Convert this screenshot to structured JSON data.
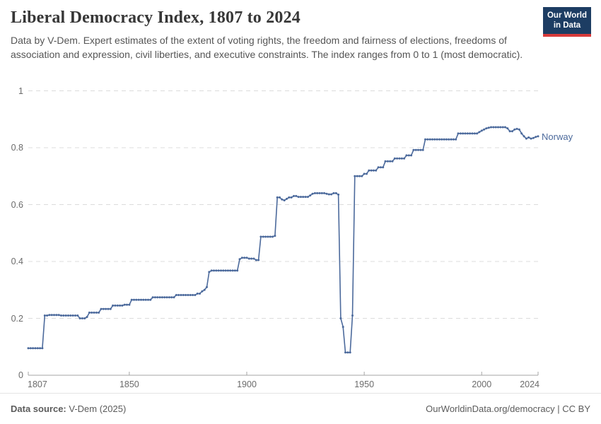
{
  "header": {
    "title": "Liberal Democracy Index, 1807 to 2024",
    "subtitle": "Data by V-Dem. Expert estimates of the extent of voting rights, the freedom and fairness of elections, freedoms of association and expression, civil liberties, and executive constraints. The index ranges from 0 to 1 (most democratic).",
    "logo": {
      "line1": "Our World",
      "line2": "in Data",
      "bg_color": "#1d3d63",
      "bar_color": "#d73a3a"
    }
  },
  "chart_data": {
    "type": "line",
    "title": "Liberal Democracy Index, 1807 to 2024",
    "xlabel": "",
    "ylabel": "",
    "x_range": [
      1807,
      2024
    ],
    "y_range": [
      0,
      1
    ],
    "grid": true,
    "markers": true,
    "legend_position": "end-of-line",
    "x_ticks": [
      {
        "year": 1807,
        "label": "1807",
        "align": "left"
      },
      {
        "year": 1850,
        "label": "1850",
        "align": "center"
      },
      {
        "year": 1900,
        "label": "1900",
        "align": "center"
      },
      {
        "year": 1950,
        "label": "1950",
        "align": "center"
      },
      {
        "year": 2000,
        "label": "2000",
        "align": "center"
      },
      {
        "year": 2024,
        "label": "2024",
        "align": "right"
      }
    ],
    "y_ticks": [
      {
        "value": 0,
        "label": "0"
      },
      {
        "value": 0.2,
        "label": "0.2"
      },
      {
        "value": 0.4,
        "label": "0.4"
      },
      {
        "value": 0.6,
        "label": "0.6"
      },
      {
        "value": 0.8,
        "label": "0.8"
      },
      {
        "value": 1,
        "label": "1"
      }
    ],
    "series": [
      {
        "name": "Norway",
        "color": "#4c6a9c",
        "interpolation": "step-hold-yearly",
        "breakpoints": [
          [
            1807,
            0.095
          ],
          [
            1814,
            0.21
          ],
          [
            1816,
            0.212
          ],
          [
            1821,
            0.21
          ],
          [
            1829,
            0.2
          ],
          [
            1832,
            0.205
          ],
          [
            1833,
            0.22
          ],
          [
            1838,
            0.233
          ],
          [
            1843,
            0.245
          ],
          [
            1848,
            0.248
          ],
          [
            1851,
            0.265
          ],
          [
            1860,
            0.274
          ],
          [
            1870,
            0.282
          ],
          [
            1879,
            0.287
          ],
          [
            1881,
            0.295
          ],
          [
            1882,
            0.3
          ],
          [
            1883,
            0.31
          ],
          [
            1884,
            0.363
          ],
          [
            1885,
            0.368
          ],
          [
            1897,
            0.408
          ],
          [
            1898,
            0.413
          ],
          [
            1901,
            0.41
          ],
          [
            1904,
            0.405
          ],
          [
            1906,
            0.487
          ],
          [
            1912,
            0.49
          ],
          [
            1913,
            0.625
          ],
          [
            1915,
            0.618
          ],
          [
            1916,
            0.615
          ],
          [
            1917,
            0.62
          ],
          [
            1918,
            0.625
          ],
          [
            1920,
            0.63
          ],
          [
            1922,
            0.627
          ],
          [
            1927,
            0.632
          ],
          [
            1928,
            0.638
          ],
          [
            1929,
            0.64
          ],
          [
            1934,
            0.638
          ],
          [
            1935,
            0.636
          ],
          [
            1937,
            0.64
          ],
          [
            1939,
            0.635
          ],
          [
            1940,
            0.2
          ],
          [
            1941,
            0.17
          ],
          [
            1942,
            0.08
          ],
          [
            1945,
            0.21
          ],
          [
            1946,
            0.7
          ],
          [
            1950,
            0.708
          ],
          [
            1952,
            0.72
          ],
          [
            1956,
            0.731
          ],
          [
            1959,
            0.752
          ],
          [
            1963,
            0.762
          ],
          [
            1968,
            0.773
          ],
          [
            1971,
            0.792
          ],
          [
            1976,
            0.829
          ],
          [
            1990,
            0.85
          ],
          [
            1999,
            0.855
          ],
          [
            2000,
            0.86
          ],
          [
            2001,
            0.864
          ],
          [
            2002,
            0.868
          ],
          [
            2003,
            0.87
          ],
          [
            2004,
            0.872
          ],
          [
            2011,
            0.868
          ],
          [
            2012,
            0.858
          ],
          [
            2014,
            0.864
          ],
          [
            2015,
            0.866
          ],
          [
            2016,
            0.864
          ],
          [
            2017,
            0.85
          ],
          [
            2018,
            0.84
          ],
          [
            2019,
            0.832
          ],
          [
            2020,
            0.836
          ],
          [
            2021,
            0.832
          ],
          [
            2022,
            0.834
          ],
          [
            2023,
            0.838
          ],
          [
            2024,
            0.84
          ]
        ]
      }
    ]
  },
  "style_colors": {
    "grid": "#dcdcdc",
    "axis": "#a6a6a6",
    "tick_text": "#6b6b6b"
  },
  "footer": {
    "source_label": "Data source:",
    "source_value": " V-Dem (2025)",
    "right_text": "OurWorldinData.org/democracy | CC BY"
  }
}
